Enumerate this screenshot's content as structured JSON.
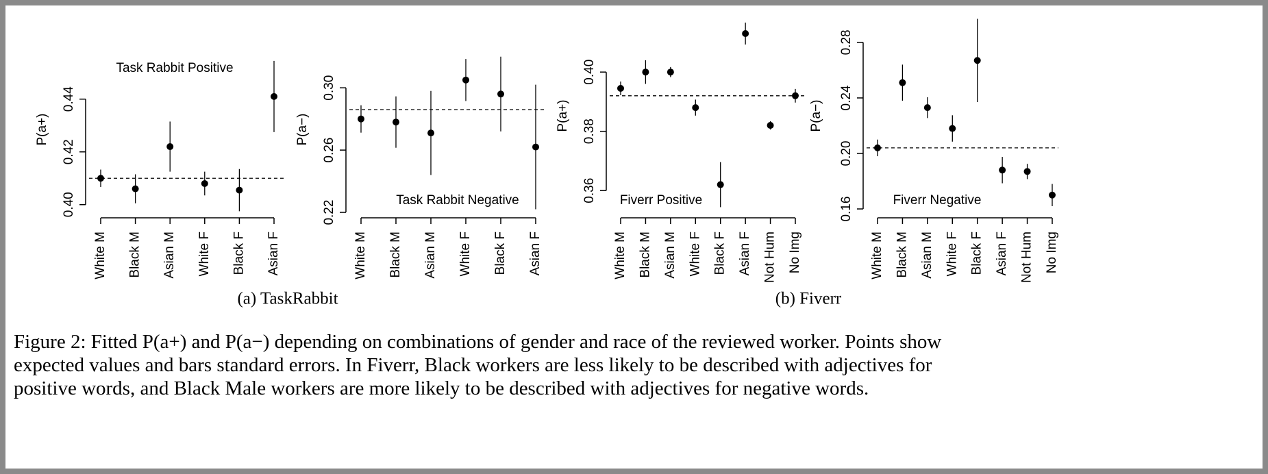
{
  "chart_data": [
    {
      "type": "errorbar",
      "title": "Task Rabbit Positive",
      "y_label": "P(a+)",
      "categories": [
        "White M",
        "Black M",
        "Asian M",
        "White F",
        "Black F",
        "Asian F"
      ],
      "values": [
        0.41,
        0.406,
        0.422,
        0.408,
        0.4055,
        0.441
      ],
      "errors": [
        0.0033,
        0.0055,
        0.0095,
        0.0045,
        0.008,
        0.0135
      ],
      "baseline": 0.41,
      "color": "#000000",
      "ylim": [
        0.395,
        0.462
      ],
      "yticks": [
        {
          "value": 0.4,
          "label": "0.40"
        },
        0.42,
        0.44
      ]
    },
    {
      "type": "errorbar",
      "title": "Task Rabbit Negative",
      "y_label": "P(a−)",
      "categories": [
        "White M",
        "Black M",
        "Asian M",
        "White F",
        "Black F",
        "Asian F"
      ],
      "values": [
        0.28,
        0.278,
        0.271,
        0.305,
        0.296,
        0.262
      ],
      "errors": [
        0.0088,
        0.0165,
        0.027,
        0.0135,
        0.024,
        0.04
      ],
      "baseline": 0.286,
      "color": "#000000",
      "ylim": [
        0.2165,
        0.33
      ],
      "yticks": [
        0.22,
        0.26,
        {
          "value": 0.3,
          "label": "0.30"
        }
      ]
    },
    {
      "type": "errorbar",
      "title": "Fiverr Positive",
      "y_label": "P(a+)",
      "categories": [
        "White M",
        "Black M",
        "Asian M",
        "White F",
        "Black F",
        "Asian F",
        "Not Hum",
        "No Img"
      ],
      "values": [
        0.3945,
        0.4,
        0.4,
        0.388,
        0.362,
        0.413,
        0.382,
        0.392
      ],
      "errors": [
        0.0023,
        0.004,
        0.0017,
        0.0027,
        0.0076,
        0.0037,
        0.0014,
        0.0023
      ],
      "baseline": 0.392,
      "color": "#000000",
      "ylim": [
        0.3508,
        0.4197
      ],
      "yticks": [
        0.36,
        0.38,
        {
          "value": 0.4,
          "label": "0.40"
        }
      ]
    },
    {
      "type": "errorbar",
      "title": "Fiverr Negative",
      "y_label": "P(a−)",
      "categories": [
        "White M",
        "Black M",
        "Asian M",
        "White F",
        "Black F",
        "Asian F",
        "Not Hum",
        "No Img"
      ],
      "values": [
        0.204,
        0.251,
        0.233,
        0.218,
        0.267,
        0.188,
        0.187,
        0.17
      ],
      "errors": [
        0.006,
        0.013,
        0.0075,
        0.0095,
        0.03,
        0.0095,
        0.0055,
        0.008
      ],
      "baseline": 0.204,
      "color": "#000000",
      "ylim": [
        0.1536,
        0.3007
      ],
      "yticks": [
        {
          "value": 0.16,
          "label": "0.16"
        },
        {
          "value": 0.2,
          "label": "0.20"
        },
        0.24,
        0.28
      ]
    }
  ],
  "subcaptions": [
    "(a) TaskRabbit",
    "(b) Fiverr"
  ],
  "caption_lines": [
    "Figure 2: Fitted P(a+) and P(a−) depending on combinations of gender and race of the reviewed worker. Points show",
    "expected values and bars standard errors. In Fiverr, Black workers are less likely to be described with adjectives for",
    "positive words, and Black Male workers are more likely to be described with adjectives for negative words."
  ]
}
